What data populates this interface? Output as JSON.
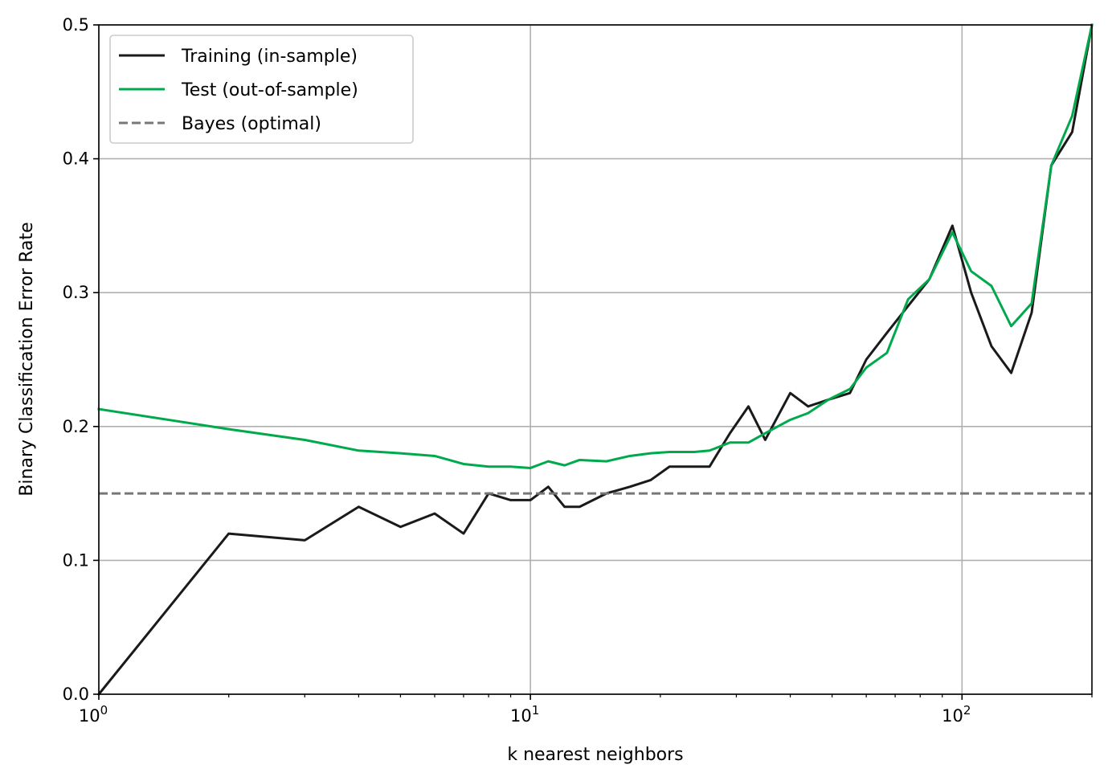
{
  "chart_data": {
    "type": "line",
    "xscale": "log",
    "xlabel": "k nearest neighbors",
    "ylabel": "Binary Classification Error Rate",
    "xlim": [
      1,
      200
    ],
    "ylim": [
      0,
      0.5
    ],
    "x_ticks": [
      {
        "value": 1,
        "base": "10",
        "exp": "0"
      },
      {
        "value": 10,
        "base": "10",
        "exp": "1"
      },
      {
        "value": 100,
        "base": "10",
        "exp": "2"
      }
    ],
    "y_ticks": [
      {
        "value": 0.0,
        "label": "0.0"
      },
      {
        "value": 0.1,
        "label": "0.1"
      },
      {
        "value": 0.2,
        "label": "0.2"
      },
      {
        "value": 0.3,
        "label": "0.3"
      },
      {
        "value": 0.4,
        "label": "0.4"
      },
      {
        "value": 0.5,
        "label": "0.5"
      }
    ],
    "grid": true,
    "legend_position": "top-left",
    "series": [
      {
        "name": "Training (in-sample)",
        "color": "#1a1a1a",
        "dash": "solid",
        "x": [
          1,
          2,
          3,
          4,
          5,
          6,
          7,
          8,
          9,
          10,
          11,
          12,
          13,
          15,
          17,
          19,
          21,
          24,
          26,
          29,
          32,
          35,
          40,
          44,
          49,
          55,
          60,
          67,
          75,
          84,
          95,
          105,
          117,
          130,
          145,
          161,
          180,
          200
        ],
        "y": [
          0.0,
          0.12,
          0.115,
          0.14,
          0.125,
          0.135,
          0.12,
          0.15,
          0.145,
          0.145,
          0.155,
          0.14,
          0.14,
          0.15,
          0.155,
          0.16,
          0.17,
          0.17,
          0.17,
          0.195,
          0.215,
          0.19,
          0.225,
          0.215,
          0.22,
          0.225,
          0.25,
          0.27,
          0.29,
          0.31,
          0.35,
          0.3,
          0.26,
          0.24,
          0.285,
          0.395,
          0.42,
          0.5
        ]
      },
      {
        "name": "Test (out-of-sample)",
        "color": "#00aa4c",
        "dash": "solid",
        "x": [
          1,
          2,
          3,
          4,
          5,
          6,
          7,
          8,
          9,
          10,
          11,
          12,
          13,
          15,
          17,
          19,
          21,
          24,
          26,
          29,
          32,
          35,
          40,
          44,
          49,
          55,
          60,
          67,
          75,
          84,
          95,
          105,
          117,
          130,
          145,
          161,
          180,
          200
        ],
        "y": [
          0.213,
          0.198,
          0.19,
          0.182,
          0.18,
          0.178,
          0.172,
          0.17,
          0.17,
          0.169,
          0.174,
          0.171,
          0.175,
          0.174,
          0.178,
          0.18,
          0.181,
          0.181,
          0.182,
          0.188,
          0.188,
          0.195,
          0.205,
          0.21,
          0.22,
          0.228,
          0.244,
          0.255,
          0.295,
          0.31,
          0.345,
          0.316,
          0.305,
          0.275,
          0.292,
          0.395,
          0.432,
          0.5
        ]
      },
      {
        "name": "Bayes (optimal)",
        "color": "#777777",
        "dash": "dashed",
        "x": [
          1,
          200
        ],
        "y": [
          0.15,
          0.15
        ]
      }
    ]
  }
}
